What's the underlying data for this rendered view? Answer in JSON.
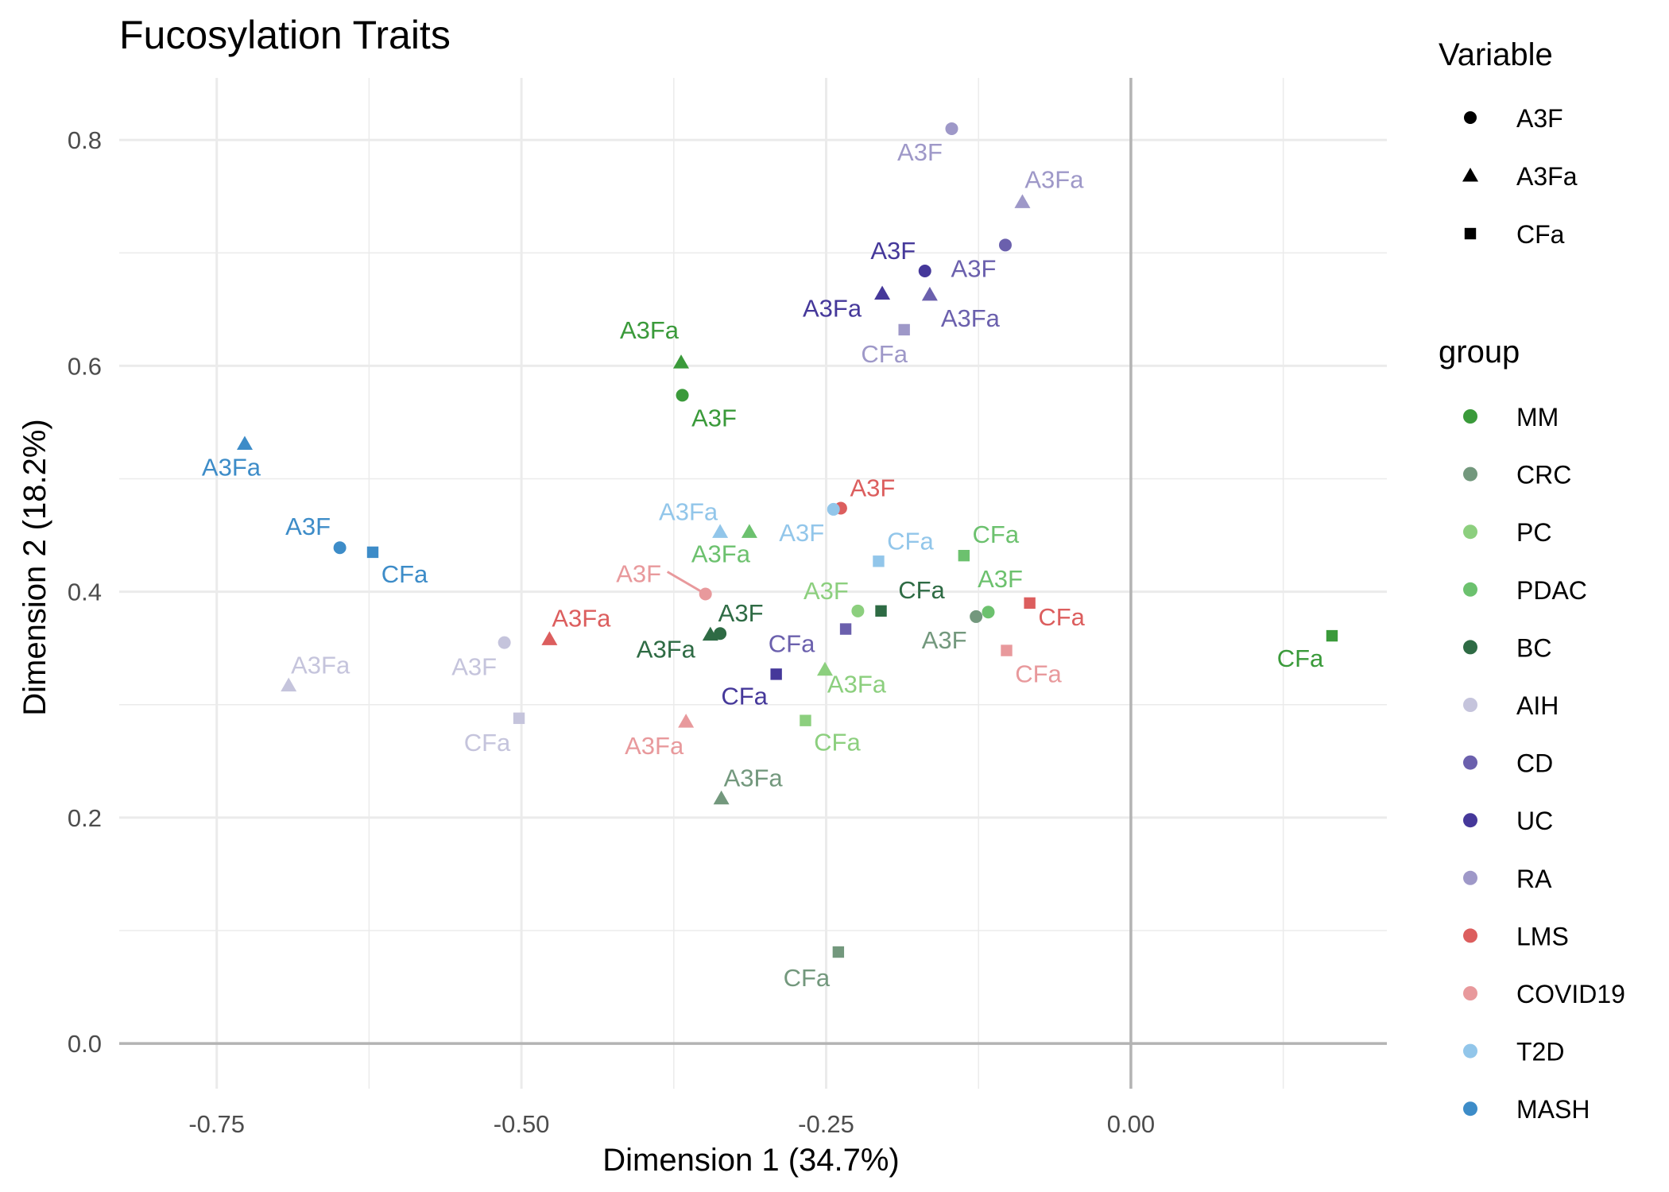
{
  "chart_data": {
    "type": "scatter",
    "title": "Fucosylation  Traits",
    "xlabel": "Dimension 1 (34.7%)",
    "ylabel": "Dimension 2 (18.2%)",
    "xlim": [
      -0.83,
      0.21
    ],
    "ylim": [
      -0.04,
      0.855
    ],
    "x_ticks": [
      {
        "value": -0.75,
        "label": "-0.75"
      },
      {
        "value": -0.5,
        "label": "-0.50"
      },
      {
        "value": -0.25,
        "label": "-0.25"
      },
      {
        "value": 0.0,
        "label": "0.00"
      }
    ],
    "y_ticks": [
      {
        "value": 0.0,
        "label": "0.0"
      },
      {
        "value": 0.2,
        "label": "0.2"
      },
      {
        "value": 0.4,
        "label": "0.4"
      },
      {
        "value": 0.6,
        "label": "0.6"
      },
      {
        "value": 0.8,
        "label": "0.8"
      }
    ],
    "grid": true,
    "zero_lines": true,
    "legend_position": "right",
    "shape_legend": {
      "title": "Variable",
      "items": [
        {
          "label": "A3F",
          "shape": "circle"
        },
        {
          "label": "A3Fa",
          "shape": "triangle"
        },
        {
          "label": "CFa",
          "shape": "square"
        }
      ]
    },
    "group_legend": {
      "title": "group",
      "items": [
        {
          "label": "MM",
          "color": "#3a9a3a"
        },
        {
          "label": "CRC",
          "color": "#73987d"
        },
        {
          "label": "PC",
          "color": "#8ccf7e"
        },
        {
          "label": "PDAC",
          "color": "#6cc16e"
        },
        {
          "label": "BC",
          "color": "#2e6b44"
        },
        {
          "label": "AIH",
          "color": "#c5c4dc"
        },
        {
          "label": "CD",
          "color": "#6b60ad"
        },
        {
          "label": "UC",
          "color": "#45389a"
        },
        {
          "label": "RA",
          "color": "#9e98c8"
        },
        {
          "label": "LMS",
          "color": "#dc5e5e"
        },
        {
          "label": "COVID19",
          "color": "#e8999c"
        },
        {
          "label": "T2D",
          "color": "#92c6ea"
        },
        {
          "label": "MASH",
          "color": "#3d8cc8"
        }
      ]
    },
    "points": [
      {
        "group": "MM",
        "variable": "A3F",
        "x": -0.368,
        "y": 0.574
      },
      {
        "group": "MM",
        "variable": "A3Fa",
        "x": -0.369,
        "y": 0.603
      },
      {
        "group": "MM",
        "variable": "CFa",
        "x": 0.165,
        "y": 0.361
      },
      {
        "group": "CRC",
        "variable": "A3F",
        "x": -0.127,
        "y": 0.378
      },
      {
        "group": "CRC",
        "variable": "A3Fa",
        "x": -0.336,
        "y": 0.217
      },
      {
        "group": "CRC",
        "variable": "CFa",
        "x": -0.24,
        "y": 0.081
      },
      {
        "group": "PC",
        "variable": "A3F",
        "x": -0.224,
        "y": 0.383
      },
      {
        "group": "PC",
        "variable": "A3Fa",
        "x": -0.251,
        "y": 0.331
      },
      {
        "group": "PC",
        "variable": "CFa",
        "x": -0.267,
        "y": 0.286
      },
      {
        "group": "PDAC",
        "variable": "A3F",
        "x": -0.117,
        "y": 0.382
      },
      {
        "group": "PDAC",
        "variable": "A3Fa",
        "x": -0.313,
        "y": 0.453
      },
      {
        "group": "PDAC",
        "variable": "CFa",
        "x": -0.137,
        "y": 0.432
      },
      {
        "group": "BC",
        "variable": "A3F",
        "x": -0.337,
        "y": 0.363
      },
      {
        "group": "BC",
        "variable": "A3Fa",
        "x": -0.345,
        "y": 0.362
      },
      {
        "group": "BC",
        "variable": "CFa",
        "x": -0.205,
        "y": 0.383
      },
      {
        "group": "AIH",
        "variable": "A3F",
        "x": -0.514,
        "y": 0.355
      },
      {
        "group": "AIH",
        "variable": "A3Fa",
        "x": -0.691,
        "y": 0.317
      },
      {
        "group": "AIH",
        "variable": "CFa",
        "x": -0.502,
        "y": 0.288
      },
      {
        "group": "CD",
        "variable": "A3F",
        "x": -0.103,
        "y": 0.707
      },
      {
        "group": "CD",
        "variable": "A3Fa",
        "x": -0.165,
        "y": 0.663
      },
      {
        "group": "CD",
        "variable": "CFa",
        "x": -0.234,
        "y": 0.367
      },
      {
        "group": "UC",
        "variable": "A3F",
        "x": -0.169,
        "y": 0.684
      },
      {
        "group": "UC",
        "variable": "A3Fa",
        "x": -0.204,
        "y": 0.664
      },
      {
        "group": "UC",
        "variable": "CFa",
        "x": -0.291,
        "y": 0.327
      },
      {
        "group": "RA",
        "variable": "A3F",
        "x": -0.147,
        "y": 0.81
      },
      {
        "group": "RA",
        "variable": "A3Fa",
        "x": -0.089,
        "y": 0.745
      },
      {
        "group": "RA",
        "variable": "CFa",
        "x": -0.186,
        "y": 0.632
      },
      {
        "group": "LMS",
        "variable": "A3F",
        "x": -0.238,
        "y": 0.474
      },
      {
        "group": "LMS",
        "variable": "A3Fa",
        "x": -0.477,
        "y": 0.358
      },
      {
        "group": "LMS",
        "variable": "CFa",
        "x": -0.083,
        "y": 0.39
      },
      {
        "group": "COVID19",
        "variable": "A3F",
        "x": -0.349,
        "y": 0.398
      },
      {
        "group": "COVID19",
        "variable": "A3Fa",
        "x": -0.365,
        "y": 0.285
      },
      {
        "group": "COVID19",
        "variable": "CFa",
        "x": -0.102,
        "y": 0.348
      },
      {
        "group": "T2D",
        "variable": "A3F",
        "x": -0.244,
        "y": 0.473
      },
      {
        "group": "T2D",
        "variable": "A3Fa",
        "x": -0.337,
        "y": 0.453
      },
      {
        "group": "T2D",
        "variable": "CFa",
        "x": -0.207,
        "y": 0.427
      },
      {
        "group": "MASH",
        "variable": "A3F",
        "x": -0.649,
        "y": 0.439
      },
      {
        "group": "MASH",
        "variable": "A3Fa",
        "x": -0.727,
        "y": 0.531
      },
      {
        "group": "MASH",
        "variable": "CFa",
        "x": -0.622,
        "y": 0.435
      }
    ]
  }
}
